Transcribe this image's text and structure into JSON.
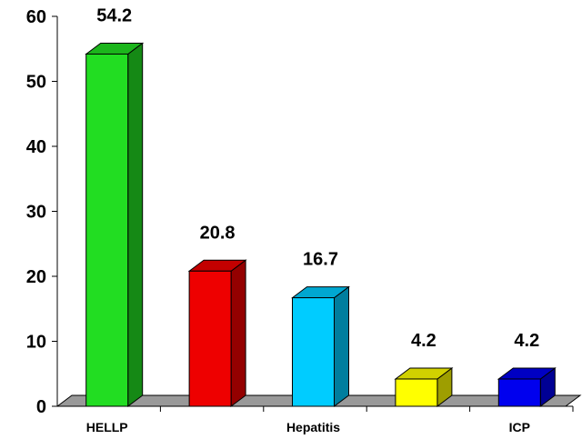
{
  "chart_data": {
    "type": "bar",
    "title": "",
    "xlabel": "",
    "ylabel": "",
    "categories": [
      "HELLP",
      "",
      "Hepatitis",
      "",
      "ICP"
    ],
    "values": [
      54.2,
      20.8,
      16.7,
      4.2,
      4.2
    ],
    "data_labels": [
      "54.2",
      "20.8",
      "16.7",
      "4.2",
      "4.2"
    ],
    "ylim": [
      0,
      60
    ],
    "yticks": [
      0,
      10,
      20,
      30,
      40,
      50,
      60
    ],
    "grid": false,
    "legend": "none",
    "style": "3d",
    "bar_colors": [
      "#22dd22",
      "#ee0000",
      "#00ccff",
      "#ffff00",
      "#0000ee"
    ],
    "floor_color": "#999999"
  }
}
